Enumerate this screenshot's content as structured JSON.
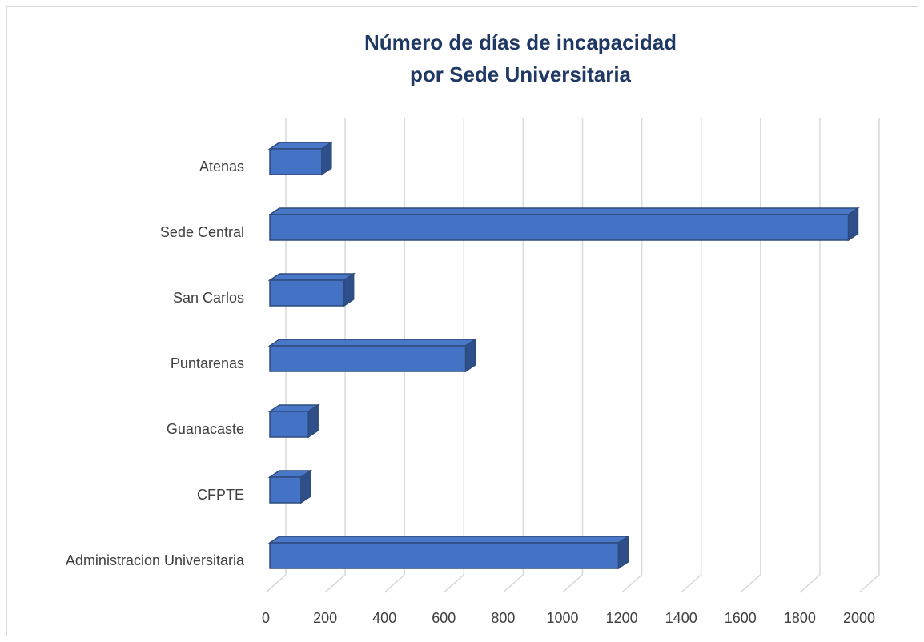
{
  "chart_data": {
    "type": "bar3d_horizontal",
    "title": [
      "Número de días de incapacidad",
      "por Sede Universitaria"
    ],
    "categories": [
      "Atenas",
      "Sede Central",
      "San Carlos",
      "Puntarenas",
      "Guanacaste",
      "CFPTE",
      "Administracion Universitaria"
    ],
    "values": [
      175,
      1950,
      250,
      660,
      130,
      105,
      1175
    ],
    "color": "#4472c4",
    "xlim": [
      0,
      2000
    ],
    "xticks": [
      0,
      200,
      400,
      600,
      800,
      1000,
      1200,
      1400,
      1600,
      1800,
      2000
    ],
    "grid": true
  }
}
